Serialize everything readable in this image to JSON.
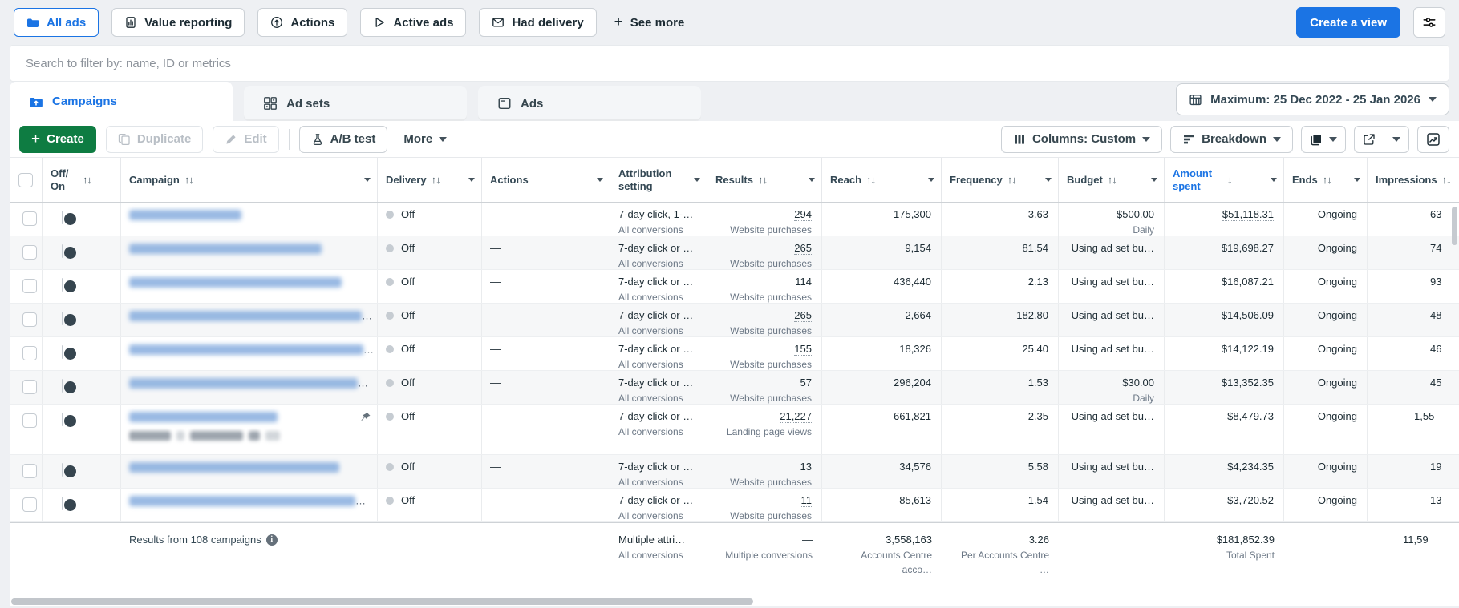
{
  "colors": {
    "accent_blue": "#1b74e4",
    "create_green": "#0e7c42",
    "page_bg": "#eef0f3",
    "text_primary": "#1c2b33",
    "text_secondary": "#6b7785",
    "delivery_dot": "#c6ccd2"
  },
  "filters": {
    "pills": [
      {
        "label": "All ads",
        "icon": "folder-icon",
        "active": true
      },
      {
        "label": "Value reporting",
        "icon": "value-reporting-icon",
        "active": false
      },
      {
        "label": "Actions",
        "icon": "actions-icon",
        "active": false
      },
      {
        "label": "Active ads",
        "icon": "active-ads-icon",
        "active": false
      },
      {
        "label": "Had delivery",
        "icon": "had-delivery-icon",
        "active": false
      }
    ],
    "see_more_label": "See more"
  },
  "search": {
    "placeholder": "Search to filter by: name, ID or metrics"
  },
  "header": {
    "create_view_label": "Create a view"
  },
  "tabs": [
    {
      "id": "campaigns",
      "label": "Campaigns",
      "icon": "campaigns-icon",
      "active": true
    },
    {
      "id": "adsets",
      "label": "Ad sets",
      "icon": "adsets-icon",
      "active": false
    },
    {
      "id": "ads",
      "label": "Ads",
      "icon": "ads-icon",
      "active": false
    }
  ],
  "date_range": {
    "label": "Maximum: 25 Dec 2022 - 25 Jan 2026"
  },
  "toolbar": {
    "create_label": "Create",
    "duplicate_label": "Duplicate",
    "edit_label": "Edit",
    "ab_test_label": "A/B test",
    "more_label": "More",
    "columns_label": "Columns: Custom",
    "breakdown_label": "Breakdown"
  },
  "table": {
    "columns": [
      {
        "id": "toggle",
        "label": "Off/\nOn",
        "sort": "updown",
        "caret": false
      },
      {
        "id": "campaign",
        "label": "Campaign",
        "sort": "updown",
        "caret": true
      },
      {
        "id": "delivery",
        "label": "Delivery",
        "sort": "updown",
        "caret": true
      },
      {
        "id": "actions",
        "label": "Actions",
        "sort": "",
        "caret": true
      },
      {
        "id": "attribution",
        "label": "Attribution setting",
        "sort": "",
        "caret": true
      },
      {
        "id": "results",
        "label": "Results",
        "sort": "updown",
        "caret": true
      },
      {
        "id": "reach",
        "label": "Reach",
        "sort": "updown",
        "caret": true
      },
      {
        "id": "frequency",
        "label": "Frequency",
        "sort": "updown",
        "caret": true
      },
      {
        "id": "budget",
        "label": "Budget",
        "sort": "updown",
        "caret": true
      },
      {
        "id": "spent",
        "label": "Amount spent",
        "sort": "down",
        "caret": true,
        "active_sort": true
      },
      {
        "id": "ends",
        "label": "Ends",
        "sort": "updown",
        "caret": true
      },
      {
        "id": "impressions",
        "label": "Impressions",
        "sort": "updown",
        "caret": false
      }
    ],
    "rows": [
      {
        "name_width": 140,
        "name_suffix": "",
        "pinned": false,
        "toggle": "off",
        "delivery": "Off",
        "actions": "—",
        "attribution": "7-day click, 1-…",
        "attribution_sub": "All conversions",
        "results": "294",
        "results_sub": "Website purchases",
        "reach": "175,300",
        "frequency": "3.63",
        "budget": "$500.00",
        "budget_sub": "Daily",
        "spent": "$51,118.31",
        "spent_underline": true,
        "ends": "Ongoing",
        "impressions": "63"
      },
      {
        "name_width": 240,
        "name_suffix": "",
        "pinned": false,
        "toggle": "off",
        "delivery": "Off",
        "actions": "—",
        "attribution": "7-day click or …",
        "attribution_sub": "All conversions",
        "results": "265",
        "results_sub": "Website purchases",
        "reach": "9,154",
        "frequency": "81.54",
        "budget": "Using ad set bu…",
        "budget_sub": "",
        "spent": "$19,698.27",
        "spent_underline": false,
        "ends": "Ongoing",
        "impressions": "74"
      },
      {
        "name_width": 265,
        "name_suffix": "",
        "pinned": false,
        "toggle": "off",
        "delivery": "Off",
        "actions": "—",
        "attribution": "7-day click or …",
        "attribution_sub": "All conversions",
        "results": "114",
        "results_sub": "Website purchases",
        "reach": "436,440",
        "frequency": "2.13",
        "budget": "Using ad set bu…",
        "budget_sub": "",
        "spent": "$16,087.21",
        "spent_underline": false,
        "ends": "Ongoing",
        "impressions": "93"
      },
      {
        "name_width": 290,
        "name_suffix": "…",
        "pinned": false,
        "toggle": "off",
        "delivery": "Off",
        "actions": "—",
        "attribution": "7-day click or …",
        "attribution_sub": "All conversions",
        "results": "265",
        "results_sub": "Website purchases",
        "reach": "2,664",
        "frequency": "182.80",
        "budget": "Using ad set bu…",
        "budget_sub": "",
        "spent": "$14,506.09",
        "spent_underline": false,
        "ends": "Ongoing",
        "impressions": "48"
      },
      {
        "name_width": 292,
        "name_suffix": "…",
        "pinned": false,
        "toggle": "off",
        "delivery": "Off",
        "actions": "—",
        "attribution": "7-day click or …",
        "attribution_sub": "All conversions",
        "results": "155",
        "results_sub": "Website purchases",
        "reach": "18,326",
        "frequency": "25.40",
        "budget": "Using ad set bu…",
        "budget_sub": "",
        "spent": "$14,122.19",
        "spent_underline": false,
        "ends": "Ongoing",
        "impressions": "46"
      },
      {
        "name_width": 285,
        "name_suffix": "…",
        "pinned": false,
        "toggle": "off",
        "delivery": "Off",
        "actions": "—",
        "attribution": "7-day click or …",
        "attribution_sub": "All conversions",
        "results": "57",
        "results_sub": "Website purchases",
        "reach": "296,204",
        "frequency": "1.53",
        "budget": "$30.00",
        "budget_sub": "Daily",
        "spent": "$13,352.35",
        "spent_underline": false,
        "ends": "Ongoing",
        "impressions": "45"
      },
      {
        "name_width": 185,
        "name_suffix": "",
        "pinned": true,
        "toggle": "off",
        "delivery": "Off",
        "actions": "—",
        "badges": [
          {
            "w": 52,
            "light": false
          },
          {
            "w": 10,
            "light": true
          },
          {
            "w": 66,
            "light": false
          },
          {
            "w": 14,
            "light": false
          },
          {
            "w": 18,
            "light": true
          }
        ],
        "attribution": "7-day click or …",
        "attribution_sub": "All conversions",
        "results": "21,227",
        "results_sub": "Landing page views",
        "reach": "661,821",
        "frequency": "2.35",
        "budget": "Using ad set bu…",
        "budget_sub": "",
        "spent": "$8,479.73",
        "spent_underline": false,
        "ends": "Ongoing",
        "impressions": "1,55"
      },
      {
        "name_width": 262,
        "name_suffix": "",
        "pinned": false,
        "toggle": "off",
        "delivery": "Off",
        "actions": "—",
        "attribution": "7-day click or …",
        "attribution_sub": "All conversions",
        "results": "13",
        "results_sub": "Website purchases",
        "reach": "34,576",
        "frequency": "5.58",
        "budget": "Using ad set bu…",
        "budget_sub": "",
        "spent": "$4,234.35",
        "spent_underline": false,
        "ends": "Ongoing",
        "impressions": "19"
      },
      {
        "name_width": 282,
        "name_suffix": "…",
        "pinned": false,
        "toggle": "off",
        "delivery": "Off",
        "actions": "—",
        "attribution": "7-day click or …",
        "attribution_sub": "All conversions",
        "results": "11",
        "results_sub": "Website purchases",
        "reach": "85,613",
        "frequency": "1.54",
        "budget": "Using ad set bu…",
        "budget_sub": "",
        "spent": "$3,720.52",
        "spent_underline": false,
        "ends": "Ongoing",
        "impressions": "13"
      }
    ],
    "summary": {
      "label": "Results from 108 campaigns",
      "attribution": "Multiple attri…",
      "attribution_sub": "All conversions",
      "results": "—",
      "results_sub": "Multiple conversions",
      "reach": "3,558,163",
      "reach_sub": "Accounts Centre acco…",
      "frequency": "3.26",
      "frequency_sub": "Per Accounts Centre …",
      "budget": "",
      "spent": "$181,852.39",
      "spent_sub": "Total Spent",
      "ends": "",
      "impressions": "11,59"
    }
  }
}
